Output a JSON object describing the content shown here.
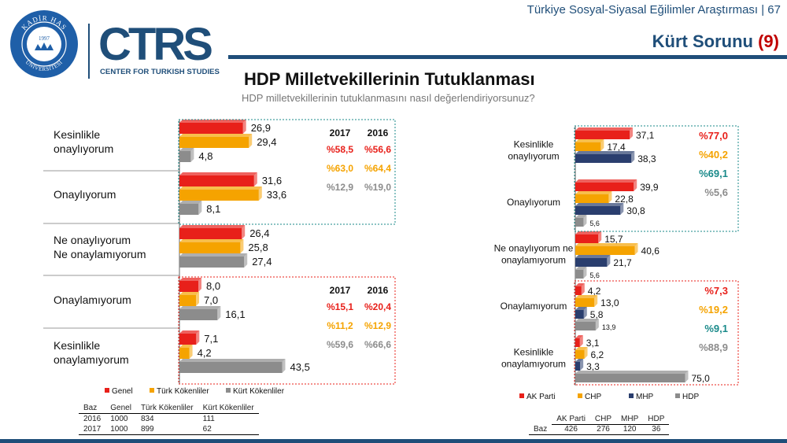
{
  "header": {
    "subtitle": "Türkiye Sosyal-Siyasal Eğilimler Araştırması | 67",
    "section": "Kürt Sorunu",
    "section_num": "(9)"
  },
  "logos": {
    "seal_text": "KADİR HAS ÜNİVERSİTESİ",
    "seal_year": "1997",
    "ctrs": "CTRS",
    "ctrs_sub": "CENTER FOR TURKISH STUDIES"
  },
  "title": "HDP Milletvekillerinin Tutuklanması",
  "question": "HDP milletvekillerinin tutuklanmasını nasıl değerlendiriyorsunuz?",
  "colors": {
    "red": "#e8201a",
    "orange": "#f5a300",
    "gray": "#8c8c8c",
    "navy": "#2a3e6e",
    "teal": "#1a8a8a"
  },
  "chart_data": [
    {
      "type": "bar",
      "orientation": "horizontal",
      "title": "HDP Milletvekillerinin Tutuklanması",
      "categories": [
        "Kesinlikle onaylıyorum",
        "Onaylıyorum",
        "Ne onaylıyorum Ne onaylamıyorum",
        "Onaylamıyorum",
        "Kesinlikle onaylamıyorum"
      ],
      "category_lines": [
        [
          "Kesinlikle",
          "onaylıyorum"
        ],
        [
          "Onaylıyorum"
        ],
        [
          "Ne onaylıyorum",
          "Ne onaylamıyorum"
        ],
        [
          "Onaylamıyorum"
        ],
        [
          "Kesinlikle",
          "onaylamıyorum"
        ]
      ],
      "series": [
        {
          "name": "Genel",
          "values": [
            26.9,
            31.6,
            26.4,
            8.0,
            7.1
          ]
        },
        {
          "name": "Türk Kökenliler",
          "values": [
            29.4,
            33.6,
            25.8,
            7.0,
            4.2
          ]
        },
        {
          "name": "Kürt Kökenliler",
          "values": [
            4.8,
            8.1,
            27.4,
            16.1,
            43.5
          ]
        }
      ],
      "value_labels": [
        [
          "26,9",
          "31,6",
          "26,4",
          "8,0",
          "7,1"
        ],
        [
          "29,4",
          "33,6",
          "25,8",
          "7,0",
          "4,2"
        ],
        [
          "4,8",
          "8,1",
          "27,4",
          "16,1",
          "43,5"
        ]
      ],
      "summary_boxes": [
        {
          "years": [
            "2017",
            "2016"
          ],
          "rows": [
            [
              "%58,5",
              "%56,6"
            ],
            [
              "%63,0",
              "%64,4"
            ],
            [
              "%12,9",
              "%19,0"
            ]
          ]
        },
        {
          "years": [
            "2017",
            "2016"
          ],
          "rows": [
            [
              "%15,1",
              "%20,4"
            ],
            [
              "%11,2",
              "%12,9"
            ],
            [
              "%59,6",
              "%66,6"
            ]
          ]
        }
      ],
      "legend": [
        "Genel",
        "Türk Kökenliler",
        "Kürt Kökenliler"
      ],
      "base_table": {
        "label": "Baz",
        "columns": [
          "",
          "Genel",
          "Türk Kökenliler",
          "Kürt Kökenliler"
        ],
        "rows": [
          [
            "2016",
            "1000",
            "834",
            "111"
          ],
          [
            "2017",
            "1000",
            "899",
            "62"
          ]
        ]
      }
    },
    {
      "type": "bar",
      "orientation": "horizontal",
      "categories": [
        "Kesinlikle onaylıyorum",
        "Onaylıyorum",
        "Ne onaylıyorum ne onaylamıyorum",
        "Onaylamıyorum",
        "Kesinlikle onaylamıyorum"
      ],
      "category_lines": [
        [
          "Kesinlikle",
          "onaylıyorum"
        ],
        [
          "Onaylıyorum"
        ],
        [
          "Ne onaylıyorum ne",
          "onaylamıyorum"
        ],
        [
          "Onaylamıyorum"
        ],
        [
          "Kesinlikle",
          "onaylamıyorum"
        ]
      ],
      "series": [
        {
          "name": "AK Parti",
          "values": [
            37.1,
            39.9,
            15.7,
            4.2,
            3.1
          ]
        },
        {
          "name": "CHP",
          "values": [
            17.4,
            22.8,
            40.6,
            13.0,
            6.2
          ]
        },
        {
          "name": "MHP",
          "values": [
            38.3,
            30.8,
            21.7,
            5.8,
            3.3
          ]
        },
        {
          "name": "HDP",
          "values": [
            0,
            5.6,
            5.6,
            13.9,
            75.0
          ]
        }
      ],
      "value_labels": [
        [
          "37,1",
          "39,9",
          "15,7",
          "4,2",
          "3,1"
        ],
        [
          "17,4",
          "22,8",
          "40,6",
          "13,0",
          "6,2"
        ],
        [
          "38,3",
          "30,8",
          "21,7",
          "5,8",
          "3,3"
        ],
        [
          "",
          "5,6",
          "5,6",
          "13,9",
          "75,0"
        ]
      ],
      "summary_boxes": [
        {
          "rows": [
            "%77,0",
            "%40,2",
            "%69,1",
            "%5,6"
          ]
        },
        {
          "rows": [
            "%7,3",
            "%19,2",
            "%9,1",
            "%88,9"
          ]
        }
      ],
      "legend": [
        "AK Parti",
        "CHP",
        "MHP",
        "HDP"
      ],
      "base_table": {
        "label": "Baz",
        "columns": [
          "AK Parti",
          "CHP",
          "MHP",
          "HDP"
        ],
        "rows": [
          [
            "426",
            "276",
            "120",
            "36"
          ]
        ]
      }
    }
  ]
}
